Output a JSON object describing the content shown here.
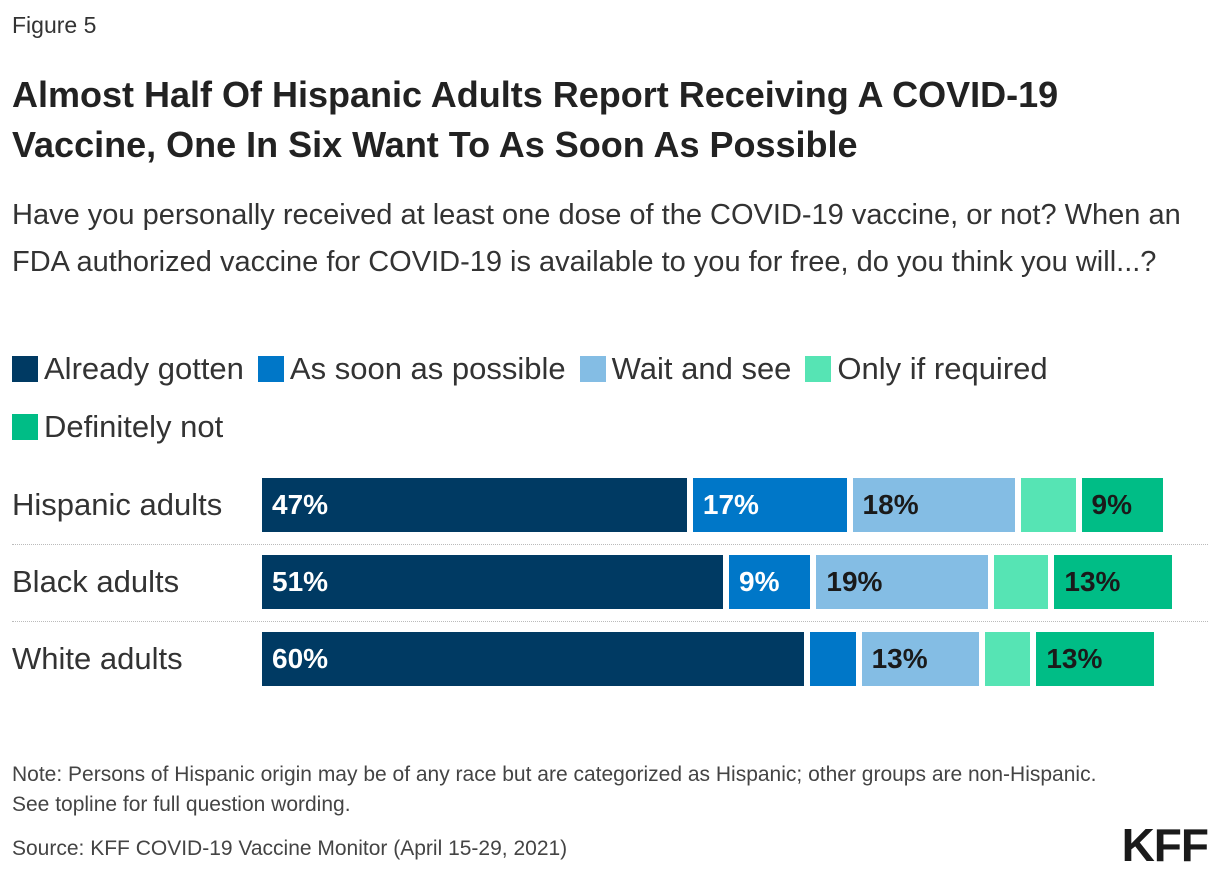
{
  "figure_label": "Figure 5",
  "title": "Almost Half Of Hispanic Adults Report Receiving A COVID-19 Vaccine, One In Six Want To As Soon As Possible",
  "subtitle": "Have you personally received at least one dose of the COVID-19 vaccine, or not? When an FDA authorized vaccine for COVID-19 is available to you for free, do you think you will...?",
  "note": "Note: Persons of Hispanic origin may be of any race but are categorized as Hispanic; other groups are non-Hispanic. See topline for full question wording.",
  "source": "Source: KFF COVID-19 Vaccine Monitor (April 15-29, 2021)",
  "logo_text": "KFF",
  "chart_data": {
    "type": "bar",
    "orientation": "horizontal",
    "stacked": true,
    "title": "Almost Half Of Hispanic Adults Report Receiving A COVID-19 Vaccine, One In Six Want To As Soon As Possible",
    "xlabel": "",
    "ylabel": "",
    "xlim": [
      0,
      100
    ],
    "legend_position": "top",
    "categories": [
      "Hispanic adults",
      "Black adults",
      "White adults"
    ],
    "series": [
      {
        "name": "Already gotten",
        "color": "#003a63",
        "label_color": "#ffffff",
        "values": [
          47,
          51,
          60
        ],
        "labels": [
          "47%",
          "51%",
          "60%"
        ]
      },
      {
        "name": "As soon as possible",
        "color": "#0077c8",
        "label_color": "#ffffff",
        "values": [
          17,
          9,
          5
        ],
        "labels": [
          "17%",
          "9%",
          ""
        ]
      },
      {
        "name": "Wait and see",
        "color": "#84bde4",
        "label_color": "#1a1a1a",
        "values": [
          18,
          19,
          13
        ],
        "labels": [
          "18%",
          "19%",
          "13%"
        ]
      },
      {
        "name": "Only if required",
        "color": "#56e4b4",
        "label_color": "#1a1a1a",
        "values": [
          6,
          6,
          5
        ],
        "labels": [
          "",
          "",
          ""
        ]
      },
      {
        "name": "Definitely not",
        "color": "#00bd86",
        "label_color": "#1a1a1a",
        "values": [
          9,
          13,
          13
        ],
        "labels": [
          "9%",
          "13%",
          "13%"
        ]
      }
    ]
  }
}
